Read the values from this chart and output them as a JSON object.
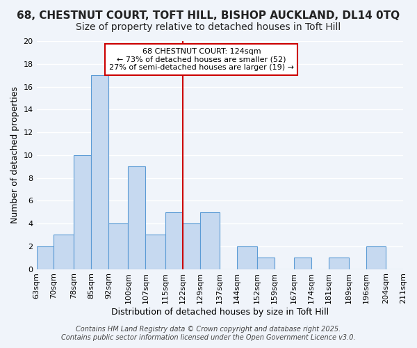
{
  "title_line1": "68, CHESTNUT COURT, TOFT HILL, BISHOP AUCKLAND, DL14 0TQ",
  "title_line2": "Size of property relative to detached houses in Toft Hill",
  "xlabel": "Distribution of detached houses by size in Toft Hill",
  "ylabel": "Number of detached properties",
  "bins": [
    63,
    70,
    78,
    85,
    92,
    100,
    107,
    115,
    122,
    129,
    137,
    144,
    152,
    159,
    167,
    174,
    181,
    189,
    196,
    204,
    211
  ],
  "counts": [
    2,
    3,
    10,
    17,
    4,
    9,
    3,
    5,
    4,
    5,
    0,
    2,
    1,
    0,
    1,
    0,
    1,
    0,
    2,
    0
  ],
  "bar_color": "#c6d9f0",
  "bar_edge_color": "#5b9bd5",
  "vline_x": 122,
  "vline_color": "#cc0000",
  "ylim": [
    0,
    20
  ],
  "yticks": [
    0,
    2,
    4,
    6,
    8,
    10,
    12,
    14,
    16,
    18,
    20
  ],
  "tick_labels": [
    "63sqm",
    "70sqm",
    "78sqm",
    "85sqm",
    "92sqm",
    "100sqm",
    "107sqm",
    "115sqm",
    "122sqm",
    "129sqm",
    "137sqm",
    "144sqm",
    "152sqm",
    "159sqm",
    "167sqm",
    "174sqm",
    "181sqm",
    "189sqm",
    "196sqm",
    "204sqm",
    "211sqm"
  ],
  "annotation_title": "68 CHESTNUT COURT: 124sqm",
  "annotation_line1": "← 73% of detached houses are smaller (52)",
  "annotation_line2": "27% of semi-detached houses are larger (19) →",
  "annotation_box_color": "#ffffff",
  "annotation_box_edge": "#cc0000",
  "footer_line1": "Contains HM Land Registry data © Crown copyright and database right 2025.",
  "footer_line2": "Contains public sector information licensed under the Open Government Licence v3.0.",
  "bg_color": "#f0f4fa",
  "grid_color": "#ffffff",
  "title_fontsize": 11,
  "subtitle_fontsize": 10,
  "axis_label_fontsize": 9,
  "tick_fontsize": 8,
  "footer_fontsize": 7
}
